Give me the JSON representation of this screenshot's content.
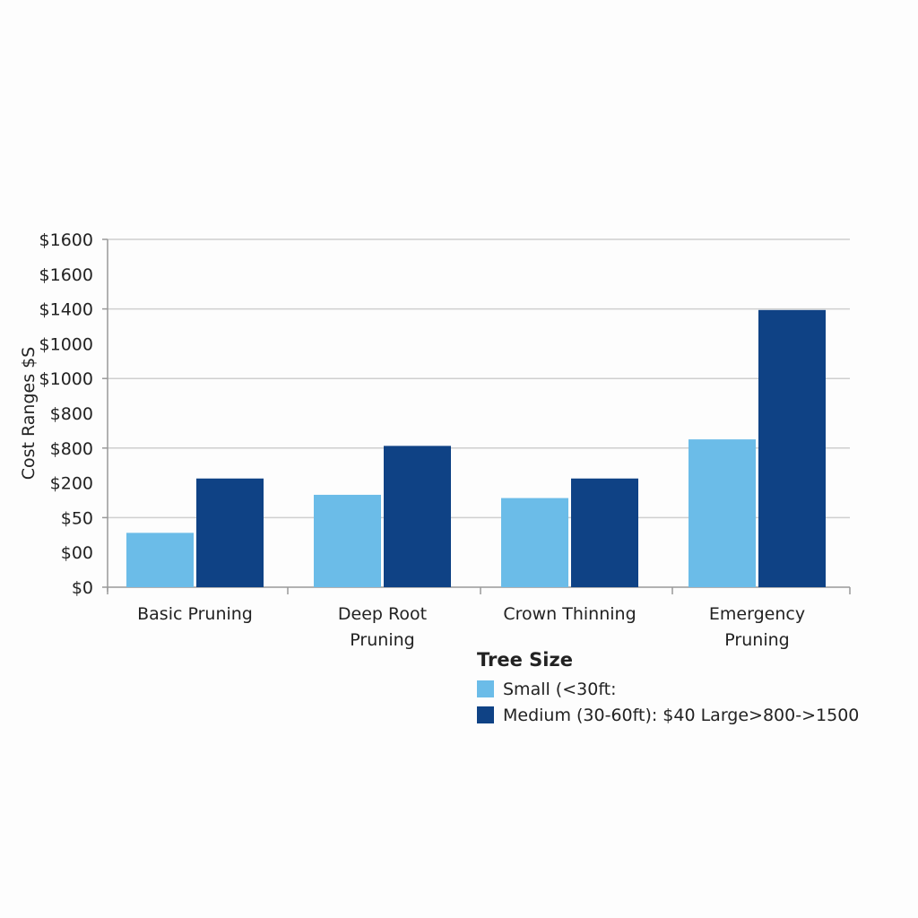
{
  "chart_data": {
    "type": "bar",
    "title": "",
    "ylabel": "Cost Ranges $S",
    "xlabel": "",
    "ytick_labels": [
      "$0",
      "$00",
      "$50",
      "$200",
      "$800",
      "$800",
      "$1000",
      "$1000",
      "$1400",
      "$1600",
      "$1600"
    ],
    "ylim": [
      0,
      1600
    ],
    "grid": true,
    "categories": [
      [
        "Basic Pruning"
      ],
      [
        "Deep Root",
        "Pruning"
      ],
      [
        "Crown Thinning"
      ],
      [
        "Emergency",
        "Pruning"
      ]
    ],
    "series": [
      {
        "name": "Small (<30ft:",
        "color": "#6bbce8",
        "values": [
          250,
          425,
          410,
          680
        ]
      },
      {
        "name": "Medium (30-60ft): $40 Large>800->1500",
        "color": "#0f4285",
        "values": [
          500,
          650,
          500,
          1275
        ]
      }
    ],
    "legend": {
      "title": "Tree Size",
      "placement": "bottom-right"
    }
  }
}
